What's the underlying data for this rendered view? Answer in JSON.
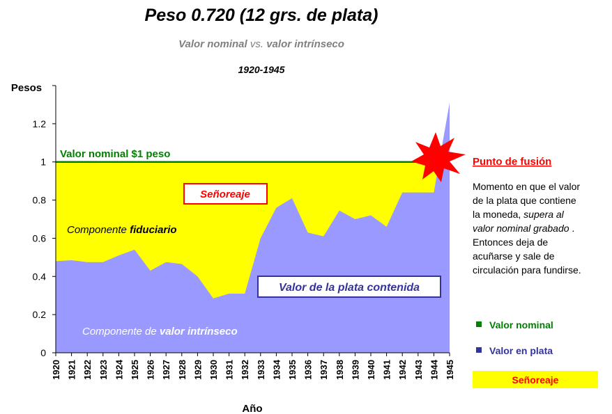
{
  "chart_data": {
    "type": "area",
    "title": "Peso 0.720 (12 grs. de plata)",
    "subtitle": {
      "left": "Valor nominal",
      "middle": "vs.",
      "right": "valor intrínseco"
    },
    "period": "1920-1945",
    "y_label": "Pesos",
    "x_label": "Año",
    "categories": [
      "1920",
      "1921",
      "1922",
      "1923",
      "1924",
      "1925",
      "1926",
      "1927",
      "1928",
      "1929",
      "1930",
      "1931",
      "1932",
      "1933",
      "1934",
      "1935",
      "1936",
      "1937",
      "1938",
      "1939",
      "1940",
      "1941",
      "1942",
      "1943",
      "1944",
      "1945"
    ],
    "series": [
      {
        "name": "Valor nominal",
        "color": "#008000",
        "values": [
          1,
          1,
          1,
          1,
          1,
          1,
          1,
          1,
          1,
          1,
          1,
          1,
          1,
          1,
          1,
          1,
          1,
          1,
          1,
          1,
          1,
          1,
          1,
          1,
          1,
          1
        ]
      },
      {
        "name": "Valor en plata",
        "color": "#9999ff",
        "values": [
          0.48,
          0.485,
          0.475,
          0.475,
          0.51,
          0.54,
          0.43,
          0.475,
          0.465,
          0.4,
          0.285,
          0.31,
          0.31,
          0.6,
          0.76,
          0.81,
          0.63,
          0.61,
          0.745,
          0.7,
          0.72,
          0.66,
          0.84,
          0.84,
          0.84,
          1.31
        ]
      }
    ],
    "seigniorage": {
      "name": "Señoreaje",
      "color": "#ffff00"
    },
    "ylim": [
      0,
      1.4
    ],
    "yticks": [
      0,
      0.2,
      0.4,
      0.6,
      0.8,
      1,
      1.2
    ],
    "annotations": {
      "nominal_line": "Valor nominal $1 peso",
      "fiduciary": {
        "a": "Componente",
        "b": "fiduciario"
      },
      "silver_value": "Valor de la plata contenida",
      "intrinsic": {
        "a": "Componente de",
        "b": "valor intrínseco"
      },
      "melting_point": "Punto de fusión",
      "description": {
        "l1": "Momento en que el valor",
        "l2": "de la plata que contiene",
        "l3a": "la moneda,",
        "l3b": "supera al",
        "l4a": "valor nominal grabado",
        "l4b": ".",
        "l5": "Entonces deja de",
        "l6": "acuñarse y sale de",
        "l7": "circulación para fundirse."
      }
    }
  }
}
